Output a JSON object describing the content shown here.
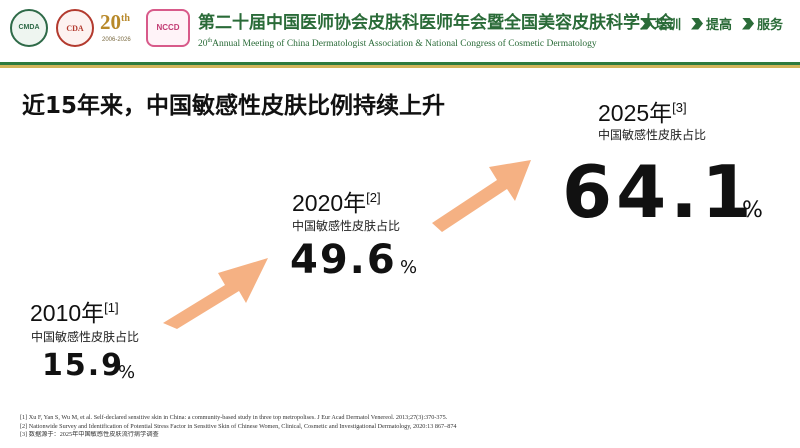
{
  "header": {
    "logos": {
      "cmda": "CMDA",
      "cda": "CDA",
      "anniv_number": "20",
      "anniv_suffix": "th",
      "anniv_years": "2006-2026",
      "nccd": "NCCD"
    },
    "title_cn": "第二十届中国医师协会皮肤科医师年会暨全国美容皮肤科学大会",
    "title_en_num": "20",
    "title_en_sup": "th",
    "title_en_rest": "Annual Meeting of China Dermatologist Association & National Congress of Cosmetic Dermatology",
    "tags": [
      "培训",
      "提高",
      "服务"
    ],
    "colors": {
      "green": "#2a6b38",
      "gold": "#d2b45a"
    }
  },
  "main_title": "近15年来，中国敏感性皮肤比例持续上升",
  "stats": [
    {
      "year": "2010年",
      "ref": "[1]",
      "caption": "中国敏感性皮肤占比",
      "value": "15.9",
      "unit": "%"
    },
    {
      "year": "2020年",
      "ref": "[2]",
      "caption": "中国敏感性皮肤占比",
      "value": "49.6",
      "unit": "%"
    },
    {
      "year": "2025年",
      "ref": "[3]",
      "caption": "中国敏感性皮肤占比",
      "value": "64.1",
      "unit": "%"
    }
  ],
  "arrow_color": "#f5b183",
  "references": [
    "[1] Xu F, Yan S, Wu M, et al. Self-declared sensitive skin in China: a community-based study in three top metropolises. J Eur Acad Dermatol Venereol. 2013;27(3):370-375.",
    "[2] Nationwide Survey and Identification of Potential Stress Factor in Sensitive Skin of Chinese Women, Clinical, Cosmetic and Investigational Dermatology, 2020:13 867–874",
    "[3] 数据源于：2025年中国敏感性皮肤流行病学调查"
  ]
}
